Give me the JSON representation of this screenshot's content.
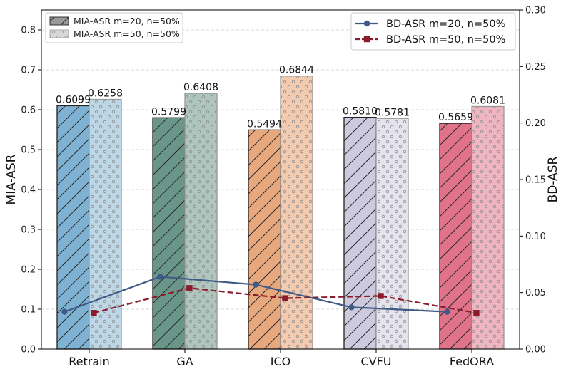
{
  "chart_data": {
    "type": "bar+line",
    "categories": [
      "Retrain",
      "GA",
      "ICO",
      "CVFU",
      "FedORA"
    ],
    "bar_series": [
      {
        "name": "MIA-ASR m=20, n=50%",
        "values": [
          0.6099,
          0.5799,
          0.5494,
          0.581,
          0.5659
        ],
        "labels": [
          "0.6099",
          "0.5799",
          "0.5494",
          "0.5810",
          "0.5659"
        ],
        "pattern": "hatch"
      },
      {
        "name": "MIA-ASR m=50, n=50%",
        "values": [
          0.6258,
          0.6408,
          0.6844,
          0.5781,
          0.6081
        ],
        "labels": [
          "0.6258",
          "0.6408",
          "0.6844",
          "0.5781",
          "0.6081"
        ],
        "pattern": "dots"
      }
    ],
    "bar_colors": [
      "#7fb2d2",
      "#6a968a",
      "#e8a87e",
      "#cdcae0",
      "#e07389"
    ],
    "bar_colors_light": [
      "#bed7e6",
      "#aec6be",
      "#f2cbb0",
      "#e5e3ee",
      "#efb5c1"
    ],
    "line_series": [
      {
        "name": "BD-ASR m=20, n=50%",
        "values": [
          0.033,
          0.064,
          0.057,
          0.037,
          0.033
        ],
        "color": "#3f5a85",
        "style": "solid",
        "marker": "circle"
      },
      {
        "name": "BD-ASR m=50, n=50%",
        "values": [
          0.032,
          0.054,
          0.045,
          0.047,
          0.032
        ],
        "color": "#8b1a2b",
        "style": "dashed",
        "marker": "square"
      }
    ],
    "ylabel_left": "MIA-ASR",
    "ylabel_right": "BD-ASR",
    "ylim_left": [
      0,
      0.85
    ],
    "ylim_right": [
      0,
      0.3
    ],
    "yticks_left": [
      "0.0",
      "0.1",
      "0.2",
      "0.3",
      "0.4",
      "0.5",
      "0.6",
      "0.7",
      "0.8"
    ],
    "yticks_right": [
      "0.00",
      "0.05",
      "0.10",
      "0.15",
      "0.20",
      "0.25",
      "0.30"
    ],
    "legend_bars_position": "top-left",
    "legend_lines_position": "top-right",
    "grid": "horizontal dashed"
  }
}
